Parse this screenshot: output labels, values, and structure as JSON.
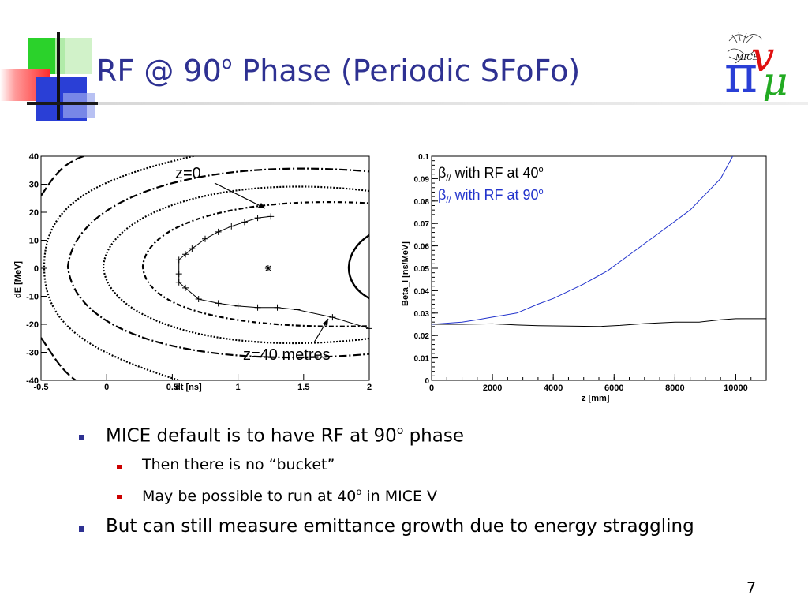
{
  "slide": {
    "title_main": "RF @ 90",
    "title_sup": "o",
    "title_rest": " Phase (Periodic SFoFo)",
    "page_number": "7",
    "logo_text": "MICE"
  },
  "bullets": [
    {
      "level": 1,
      "pre": "MICE default is to have RF at 90",
      "sup": "o",
      "post": " phase"
    },
    {
      "level": 2,
      "pre": "Then there is no “bucket”",
      "sup": "",
      "post": ""
    },
    {
      "level": 2,
      "pre": "May be possible to run at 40",
      "sup": "o",
      "post": " in MICE V"
    },
    {
      "level": 1,
      "pre": "But can still measure emittance growth due to energy straggling",
      "sup": "",
      "post": ""
    }
  ],
  "colors": {
    "title": "#2e3192",
    "bullet1": "#2e3192",
    "bullet2": "#cc0000",
    "series_40": "#000000",
    "series_90": "#2233cc"
  },
  "chart_data": [
    {
      "type": "scatter",
      "title": "",
      "xlabel": "dt [ns]",
      "ylabel": "dE [MeV]",
      "xlim": [
        -0.5,
        2
      ],
      "ylim": [
        -40,
        40
      ],
      "xticks": [
        "-0.5",
        "0",
        "0.5",
        "1",
        "1.5",
        "2"
      ],
      "yticks": [
        "-40",
        "-30",
        "-20",
        "-10",
        "0",
        "10",
        "20",
        "30",
        "40"
      ],
      "annotations": [
        "z=0",
        "z=40 metres"
      ],
      "center_point": {
        "x": 1.23,
        "y": 0
      },
      "trajectory": {
        "x": [
          1.25,
          1.15,
          1.05,
          0.95,
          0.85,
          0.75,
          0.65,
          0.6,
          0.55,
          0.55,
          0.55,
          0.6,
          0.7,
          0.85,
          1.0,
          1.15,
          1.3,
          1.45,
          1.72,
          2.0
        ],
        "y": [
          18.5,
          18,
          16.5,
          15,
          13,
          10.5,
          7,
          5,
          3,
          -2,
          -5,
          -7,
          -11,
          -12.5,
          -13.5,
          -14,
          -14,
          -14.8,
          -17.5,
          -21.5
        ]
      }
    },
    {
      "type": "line",
      "title": "",
      "xlabel": "z [mm]",
      "ylabel": "Beta_l [ns/MeV]",
      "xlim": [
        0,
        11000
      ],
      "ylim": [
        0,
        0.1
      ],
      "xticks": [
        "0",
        "2000",
        "4000",
        "6000",
        "8000",
        "10000"
      ],
      "yticks": [
        "0",
        "0.01",
        "0.02",
        "0.03",
        "0.04",
        "0.05",
        "0.06",
        "0.07",
        "0.08",
        "0.09",
        "0.1"
      ],
      "legend_position": "top-left",
      "series": [
        {
          "name_pre": "β",
          "name_sub": "//",
          "name_text": " with RF at 40",
          "name_sup": "o",
          "color": "#000000",
          "x": [
            0,
            1000,
            2000,
            2800,
            3500,
            4500,
            5500,
            6200,
            7000,
            8000,
            8800,
            9500,
            10000,
            11000
          ],
          "y": [
            0.025,
            0.025,
            0.0252,
            0.0247,
            0.0244,
            0.0242,
            0.024,
            0.0245,
            0.0253,
            0.026,
            0.026,
            0.027,
            0.0275,
            0.0275
          ]
        },
        {
          "name_pre": "β",
          "name_sub": "//",
          "name_text": " with RF at 90",
          "name_sup": "o",
          "color": "#2233cc",
          "x": [
            0,
            1000,
            1500,
            2000,
            2800,
            3500,
            4000,
            5000,
            5800,
            6500,
            7500,
            8500,
            9000,
            9500,
            9900
          ],
          "y": [
            0.025,
            0.026,
            0.027,
            0.0282,
            0.03,
            0.034,
            0.0365,
            0.043,
            0.049,
            0.056,
            0.066,
            0.076,
            0.083,
            0.09,
            0.1
          ]
        }
      ]
    }
  ]
}
